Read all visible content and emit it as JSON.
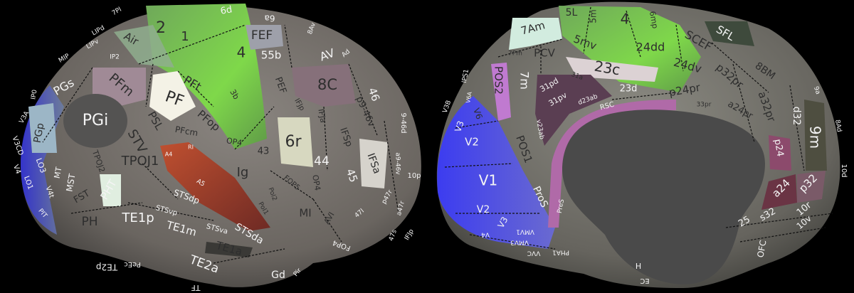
{
  "colors": {
    "background": "#000000",
    "surface": "#6f6a66",
    "motor_green": "#7ccf4a",
    "visual_blue": "#3b3bf0",
    "medial_wall": "#4a4a4a",
    "auditory_red": "#a0402a",
    "cingulate_pink": "#b06aa8"
  },
  "lateral": {
    "labels": [
      "6d",
      "6a",
      "2",
      "1",
      "Air",
      "FEF",
      "4",
      "55b",
      "AV",
      "IP2",
      "PFm",
      "PF",
      "PFt",
      "3b",
      "PEF",
      "8C",
      "46",
      "PGs",
      "PGi",
      "STV",
      "PSL",
      "PFop",
      "PFcm",
      "OP4",
      "43",
      "6r",
      "IFJa",
      "IFJp",
      "p9-46v",
      "IFSp",
      "IFSa",
      "44",
      "45",
      "PGp",
      "TPOJ1",
      "TPOJ2",
      "LO3",
      "MT",
      "MST",
      "V4t",
      "LO1",
      "V4",
      "V3CD",
      "FST",
      "PHT",
      "PH",
      "A4",
      "RI",
      "Ig",
      "A5",
      "STSdp",
      "STSvp",
      "TE1p",
      "TE1m",
      "STSva",
      "STSda",
      "TE1a",
      "TE2a",
      "Gd",
      "FOP5",
      "OP4",
      "MI",
      "AVI",
      "PoI2",
      "PoI1",
      "47l",
      "p47r",
      "10p",
      "a9-46v",
      "9-46d",
      "LIPv",
      "LIPd",
      "MIP",
      "IP0",
      "V3A",
      "PIT",
      "8Av",
      "7Pl",
      "TF",
      "TE2p",
      "PeEc",
      "Pir",
      "FOP4",
      "47s",
      "a47r",
      "IFJp",
      "Ad"
    ]
  },
  "medial": {
    "labels": [
      "5L",
      "5m",
      "4",
      "6mp",
      "7Am",
      "SFL",
      "SCEF",
      "5mv",
      "24dd",
      "PCV",
      "7Pm",
      "23c",
      "24dv",
      "p32pr",
      "8BM",
      "POS2",
      "7m",
      "31pd",
      "31a",
      "31pv",
      "d23ab",
      "23d",
      "p24pr",
      "RSC",
      "a32pr",
      "a24pr",
      "33pr",
      "d32",
      "9m",
      "V6",
      "V3",
      "V2",
      "V1",
      "POS1",
      "v23ab",
      "p24",
      "ProS",
      "a24",
      "p32",
      "25",
      "s32",
      "10r",
      "10v",
      "V2",
      "V3",
      "V4",
      "VMV1",
      "VMV3",
      "VVC",
      "PHA1",
      "PreS",
      "H",
      "EC",
      "OFC",
      "10d",
      "9a",
      "8Ad",
      "V6A",
      "IPS1",
      "V3B"
    ]
  }
}
